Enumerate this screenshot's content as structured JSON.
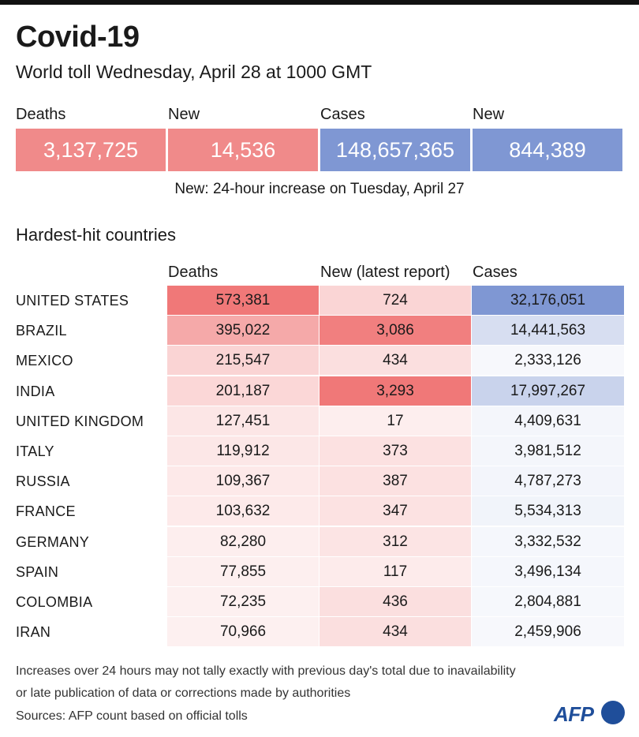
{
  "header": {
    "title": "Covid-19",
    "subtitle": "World toll Wednesday, April 28 at 1000 GMT"
  },
  "summary": {
    "deaths_label": "Deaths",
    "deaths_value": "3,137,725",
    "new_deaths_label": "New",
    "new_deaths_value": "14,536",
    "cases_label": "Cases",
    "cases_value": "148,657,365",
    "new_cases_label": "New",
    "new_cases_value": "844,389",
    "note": "New: 24-hour increase on Tuesday, April 27"
  },
  "colors": {
    "deaths_red": "#f08a8a",
    "cases_blue": "#7f97d3",
    "red_rgb": [
      240,
      120,
      120
    ],
    "blue_rgb": [
      127,
      151,
      211
    ]
  },
  "table": {
    "section_title": "Hardest-hit countries",
    "columns": [
      "Deaths",
      "New (latest report)",
      "Cases"
    ]
  },
  "chart_data": {
    "type": "table",
    "title": "Hardest-hit countries",
    "columns": [
      "Deaths",
      "New (latest report)",
      "Cases"
    ],
    "rows": [
      {
        "country": "UNITED STATES",
        "deaths": "573,381",
        "new": "724",
        "cases": "32,176,051"
      },
      {
        "country": "BRAZIL",
        "deaths": "395,022",
        "new": "3,086",
        "cases": "14,441,563"
      },
      {
        "country": "MEXICO",
        "deaths": "215,547",
        "new": "434",
        "cases": "2,333,126"
      },
      {
        "country": "INDIA",
        "deaths": "201,187",
        "new": "3,293",
        "cases": "17,997,267"
      },
      {
        "country": "UNITED KINGDOM",
        "deaths": "127,451",
        "new": "17",
        "cases": "4,409,631"
      },
      {
        "country": "ITALY",
        "deaths": "119,912",
        "new": "373",
        "cases": "3,981,512"
      },
      {
        "country": "RUSSIA",
        "deaths": "109,367",
        "new": "387",
        "cases": "4,787,273"
      },
      {
        "country": "FRANCE",
        "deaths": "103,632",
        "new": "347",
        "cases": "5,534,313"
      },
      {
        "country": "GERMANY",
        "deaths": "82,280",
        "new": "312",
        "cases": "3,332,532"
      },
      {
        "country": "SPAIN",
        "deaths": "77,855",
        "new": "117",
        "cases": "3,496,134"
      },
      {
        "country": "COLOMBIA",
        "deaths": "72,235",
        "new": "436",
        "cases": "2,804,881"
      },
      {
        "country": "IRAN",
        "deaths": "70,966",
        "new": "434",
        "cases": "2,459,906"
      }
    ]
  },
  "footer": {
    "line1": "Increases over 24 hours may not tally exactly with previous day's total due to inavailability",
    "line2": "or late publication of data or corrections made by authorities",
    "sources": "Sources: AFP count based on official tolls",
    "logo": "AFP"
  }
}
